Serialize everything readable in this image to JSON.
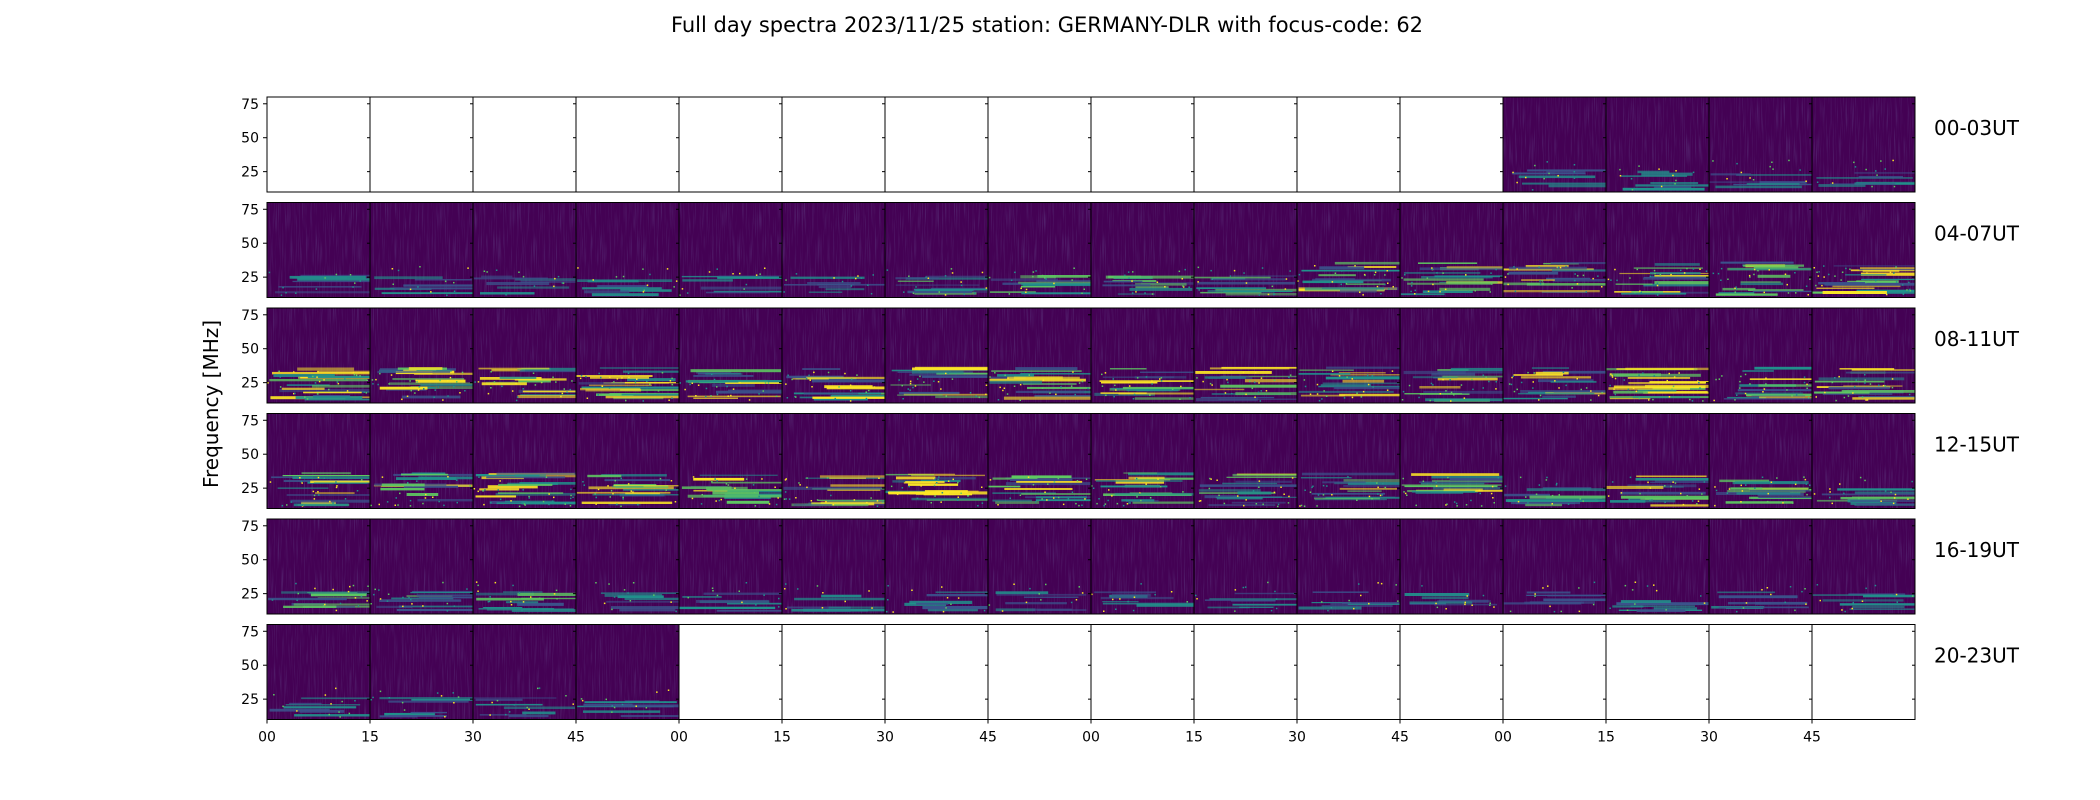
{
  "chart_data": {
    "type": "heatmap",
    "title": "Full day spectra 2023/11/25 station: GERMANY-DLR with focus-code: 62",
    "ylabel": "Frequency [MHz]",
    "xlabel": "",
    "y_ticks": [
      75,
      50,
      25
    ],
    "ylim": [
      10,
      80
    ],
    "x_ticks": [
      "00",
      "15",
      "30",
      "45",
      "00",
      "15",
      "30",
      "45",
      "00",
      "15",
      "30",
      "45",
      "00",
      "15",
      "30",
      "45"
    ],
    "row_labels": [
      "00-03UT",
      "04-07UT",
      "08-11UT",
      "12-15UT",
      "16-19UT",
      "20-23UT"
    ],
    "panels_per_row": 16,
    "panel_minutes": 15,
    "colormap": [
      "#440154",
      "#3b528b",
      "#21918c",
      "#5ec962",
      "#fde725"
    ],
    "data_available": [
      [
        0,
        0,
        0,
        0,
        0,
        0,
        0,
        0,
        0,
        0,
        0,
        0,
        1,
        1,
        1,
        1
      ],
      [
        1,
        1,
        1,
        1,
        1,
        1,
        1,
        1,
        1,
        1,
        1,
        1,
        1,
        1,
        1,
        1
      ],
      [
        1,
        1,
        1,
        1,
        1,
        1,
        1,
        1,
        1,
        1,
        1,
        1,
        1,
        1,
        1,
        1
      ],
      [
        1,
        1,
        1,
        1,
        1,
        1,
        1,
        1,
        1,
        1,
        1,
        1,
        1,
        1,
        1,
        1
      ],
      [
        1,
        1,
        1,
        1,
        1,
        1,
        1,
        1,
        1,
        1,
        1,
        1,
        1,
        1,
        1,
        1
      ],
      [
        1,
        1,
        1,
        1,
        0,
        0,
        0,
        0,
        0,
        0,
        0,
        0,
        0,
        0,
        0,
        0
      ]
    ],
    "activity_level": [
      [
        0,
        0,
        0,
        0,
        0,
        0,
        0,
        0,
        0,
        0,
        0,
        0,
        1,
        1,
        1,
        1
      ],
      [
        1,
        1,
        1,
        1,
        1,
        1,
        2,
        2,
        2,
        2,
        3,
        3,
        3,
        3,
        3,
        4
      ],
      [
        4,
        4,
        3,
        4,
        3,
        3,
        3,
        3,
        3,
        3,
        3,
        3,
        3,
        4,
        3,
        3
      ],
      [
        3,
        3,
        4,
        3,
        3,
        3,
        4,
        3,
        3,
        3,
        3,
        3,
        2,
        3,
        3,
        2
      ],
      [
        2,
        2,
        2,
        1,
        1,
        1,
        1,
        1,
        1,
        1,
        1,
        1,
        1,
        1,
        1,
        1
      ],
      [
        1,
        1,
        1,
        1,
        0,
        0,
        0,
        0,
        0,
        0,
        0,
        0,
        0,
        0,
        0,
        0
      ]
    ]
  }
}
